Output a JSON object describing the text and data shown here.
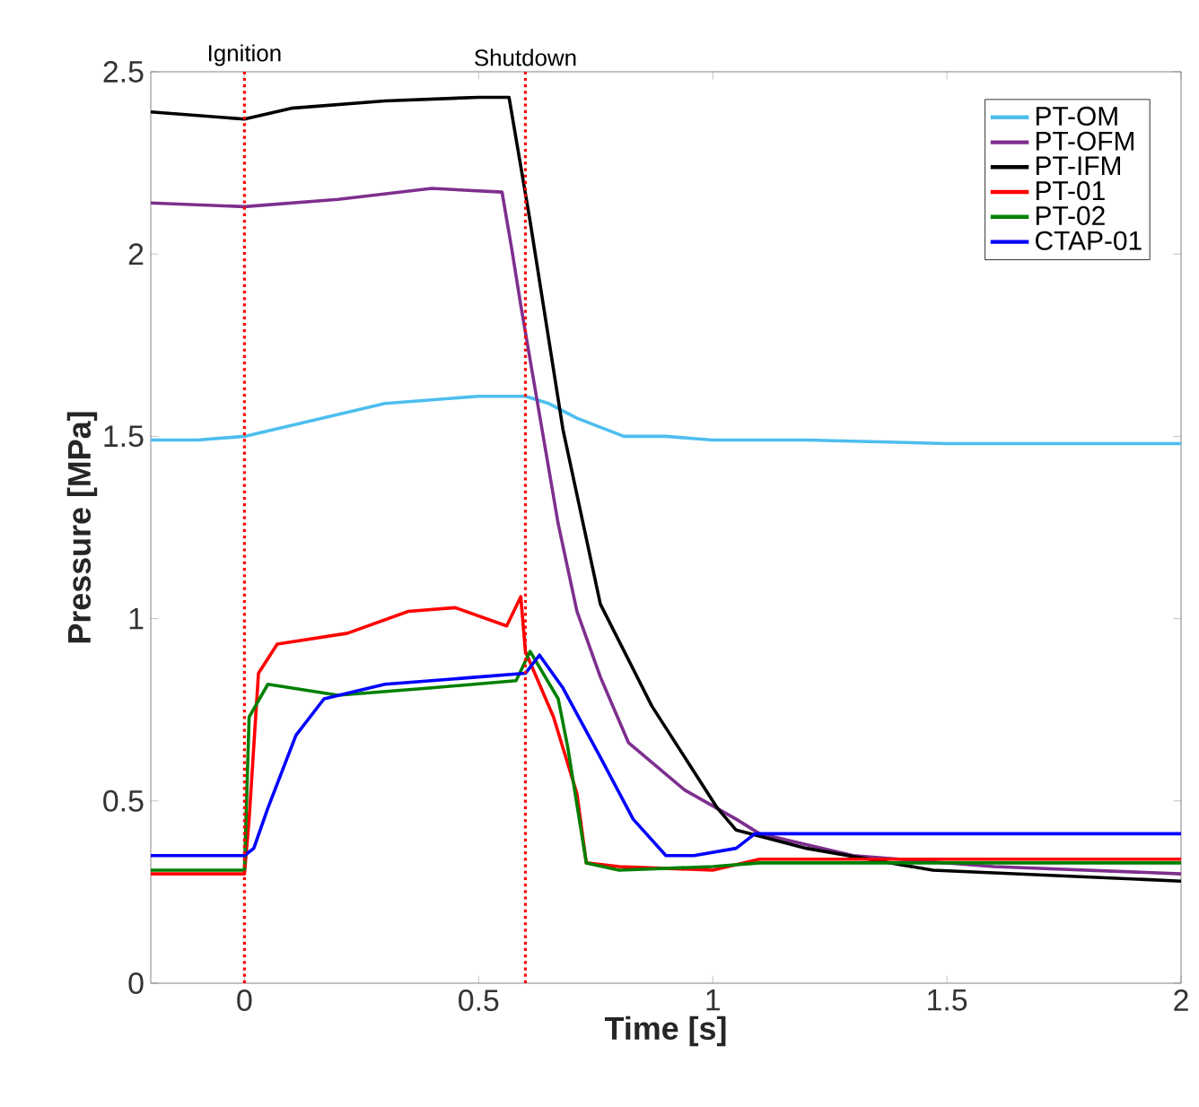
{
  "chart_data": {
    "type": "line",
    "xlabel": "Time [s]",
    "ylabel": "Pressure [MPa]",
    "xlim": [
      -0.2,
      2
    ],
    "ylim": [
      0,
      2.5
    ],
    "xticks": [
      0,
      0.5,
      1,
      1.5,
      2
    ],
    "yticks": [
      0,
      0.5,
      1,
      1.5,
      2,
      2.5
    ],
    "legend": "top right",
    "line_style": "solid",
    "ref_lines": [
      {
        "axis": "x",
        "value": 0,
        "label": "Ignition",
        "color": "#ff0000",
        "line_style": "dotted"
      },
      {
        "axis": "x",
        "value": 0.6,
        "label": "Shutdown",
        "color": "#ff0000",
        "line_style": "dotted"
      }
    ],
    "series": [
      {
        "name": "PT-OM",
        "color": "#4dbeee",
        "x": [
          -0.2,
          -0.1,
          0,
          0.1,
          0.2,
          0.3,
          0.4,
          0.5,
          0.6,
          0.65,
          0.71,
          0.81,
          0.9,
          1.0,
          1.2,
          1.5,
          2.0
        ],
        "values": [
          1.49,
          1.49,
          1.5,
          1.53,
          1.56,
          1.59,
          1.6,
          1.61,
          1.61,
          1.59,
          1.55,
          1.5,
          1.5,
          1.49,
          1.49,
          1.48,
          1.48
        ]
      },
      {
        "name": "PT-OFM",
        "color": "#7e2f8e",
        "x": [
          -0.2,
          0,
          0.2,
          0.4,
          0.55,
          0.57,
          0.59,
          0.61,
          0.67,
          0.71,
          0.76,
          0.82,
          0.94,
          1.05,
          1.1,
          1.3,
          1.6,
          2.0
        ],
        "values": [
          2.14,
          2.13,
          2.15,
          2.18,
          2.17,
          2.02,
          1.86,
          1.71,
          1.26,
          1.02,
          0.84,
          0.66,
          0.53,
          0.45,
          0.41,
          0.35,
          0.32,
          0.3
        ]
      },
      {
        "name": "PT-IFM",
        "color": "#000000",
        "x": [
          -0.2,
          0,
          0.1,
          0.3,
          0.5,
          0.565,
          0.61,
          0.68,
          0.76,
          0.87,
          1.01,
          1.05,
          1.2,
          1.47,
          2.0
        ],
        "values": [
          2.39,
          2.37,
          2.4,
          2.42,
          2.43,
          2.43,
          2.09,
          1.52,
          1.04,
          0.76,
          0.48,
          0.42,
          0.37,
          0.31,
          0.28
        ]
      },
      {
        "name": "PT-01",
        "color": "#ff0000",
        "x": [
          -0.2,
          0,
          0.01,
          0.03,
          0.07,
          0.22,
          0.35,
          0.45,
          0.56,
          0.59,
          0.6,
          0.66,
          0.71,
          0.73,
          0.8,
          1.0,
          1.1,
          1.5,
          2.0
        ],
        "values": [
          0.3,
          0.3,
          0.45,
          0.85,
          0.93,
          0.96,
          1.02,
          1.03,
          0.98,
          1.06,
          0.91,
          0.73,
          0.52,
          0.33,
          0.32,
          0.31,
          0.34,
          0.34,
          0.34
        ]
      },
      {
        "name": "PT-02",
        "color": "#008000",
        "x": [
          -0.2,
          0,
          0.01,
          0.05,
          0.2,
          0.4,
          0.58,
          0.61,
          0.67,
          0.69,
          0.73,
          0.8,
          1.0,
          1.1,
          2.0
        ],
        "values": [
          0.31,
          0.31,
          0.73,
          0.82,
          0.79,
          0.81,
          0.83,
          0.91,
          0.78,
          0.65,
          0.33,
          0.31,
          0.32,
          0.33,
          0.33
        ]
      },
      {
        "name": "CTAP-01",
        "color": "#0000ff",
        "x": [
          -0.2,
          0,
          0.02,
          0.05,
          0.11,
          0.17,
          0.3,
          0.5,
          0.6,
          0.63,
          0.68,
          0.76,
          0.83,
          0.9,
          0.96,
          1.05,
          1.09,
          1.5,
          2.0
        ],
        "values": [
          0.35,
          0.35,
          0.37,
          0.48,
          0.68,
          0.78,
          0.82,
          0.84,
          0.85,
          0.9,
          0.81,
          0.62,
          0.45,
          0.35,
          0.35,
          0.37,
          0.41,
          0.41,
          0.41
        ]
      }
    ]
  }
}
